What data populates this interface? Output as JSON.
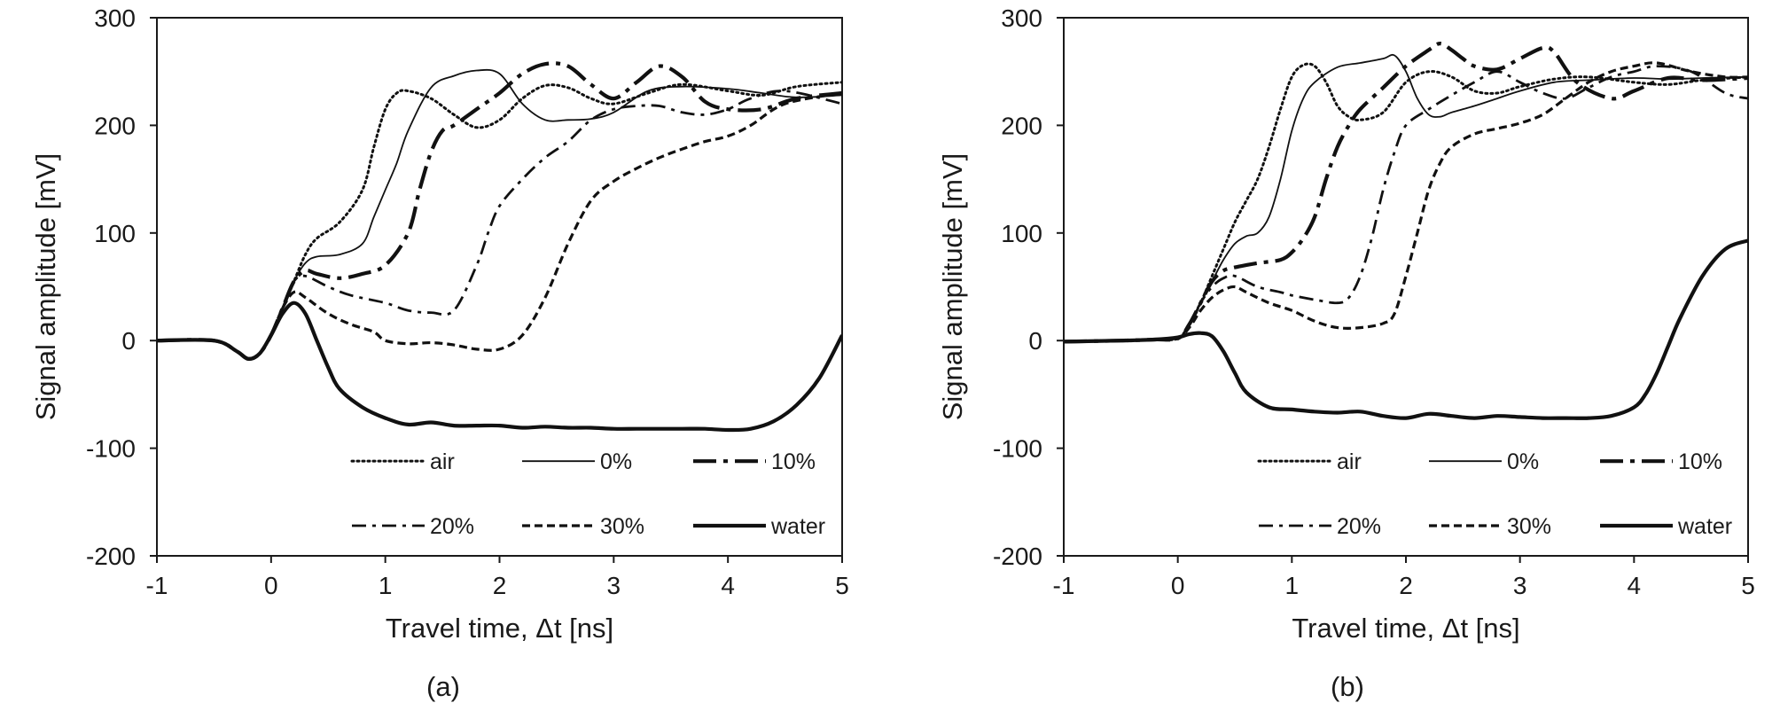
{
  "chart_data": [
    {
      "type": "line",
      "panel_label": "(a)",
      "xlabel": "Travel time, Δt [ns]",
      "ylabel": "Signal amplitude [mV]",
      "xlim": [
        -1,
        5
      ],
      "ylim": [
        -200,
        300
      ],
      "xticks": [
        -1,
        0,
        1,
        2,
        3,
        4,
        5
      ],
      "yticks": [
        -200,
        -100,
        0,
        100,
        200,
        300
      ],
      "grid": false,
      "legend": "lower-right",
      "series": [
        {
          "name": "air",
          "style": "dotted",
          "x": [
            -1,
            -0.5,
            -0.3,
            -0.2,
            -0.1,
            0,
            0.1,
            0.2,
            0.3,
            0.4,
            0.6,
            0.8,
            0.9,
            1.0,
            1.1,
            1.2,
            1.4,
            1.6,
            1.8,
            2.0,
            2.2,
            2.4,
            2.6,
            2.8,
            3.0,
            3.3,
            3.6,
            4.0,
            4.3,
            4.6,
            5.0
          ],
          "y": [
            0,
            0,
            -10,
            -17,
            -12,
            5,
            30,
            55,
            80,
            95,
            110,
            140,
            180,
            215,
            230,
            232,
            225,
            210,
            198,
            205,
            225,
            237,
            235,
            225,
            220,
            230,
            238,
            232,
            228,
            236,
            240
          ]
        },
        {
          "name": "0%",
          "style": "solid-thin",
          "x": [
            -1,
            -0.5,
            -0.3,
            -0.2,
            -0.1,
            0,
            0.1,
            0.2,
            0.3,
            0.4,
            0.6,
            0.8,
            0.9,
            1.0,
            1.1,
            1.2,
            1.4,
            1.6,
            1.8,
            2.0,
            2.2,
            2.4,
            2.6,
            2.8,
            3.0,
            3.3,
            3.6,
            4.0,
            4.3,
            4.6,
            5.0
          ],
          "y": [
            0,
            0,
            -10,
            -17,
            -12,
            5,
            30,
            55,
            72,
            78,
            80,
            90,
            115,
            140,
            165,
            195,
            235,
            246,
            251,
            248,
            220,
            205,
            205,
            206,
            212,
            232,
            236,
            234,
            230,
            226,
            228
          ]
        },
        {
          "name": "10%",
          "style": "long-dash-dot",
          "x": [
            -1,
            -0.5,
            -0.3,
            -0.2,
            -0.1,
            0,
            0.1,
            0.2,
            0.3,
            0.4,
            0.6,
            0.8,
            1.0,
            1.2,
            1.3,
            1.4,
            1.5,
            1.6,
            1.8,
            2.0,
            2.2,
            2.4,
            2.6,
            2.8,
            3.0,
            3.2,
            3.4,
            3.6,
            3.8,
            4.0,
            4.3,
            4.6,
            5.0
          ],
          "y": [
            0,
            0,
            -10,
            -17,
            -12,
            5,
            30,
            55,
            65,
            62,
            58,
            62,
            70,
            100,
            140,
            175,
            195,
            200,
            215,
            230,
            248,
            257,
            255,
            238,
            225,
            240,
            255,
            245,
            222,
            215,
            215,
            225,
            230
          ]
        },
        {
          "name": "20%",
          "style": "dash-dot",
          "x": [
            -1,
            -0.5,
            -0.3,
            -0.2,
            -0.1,
            0,
            0.1,
            0.2,
            0.3,
            0.5,
            0.7,
            1.0,
            1.2,
            1.4,
            1.6,
            1.8,
            1.9,
            2.0,
            2.2,
            2.4,
            2.6,
            2.8,
            3.0,
            3.2,
            3.4,
            3.6,
            3.8,
            4.0,
            4.2,
            4.5,
            5.0
          ],
          "y": [
            0,
            0,
            -10,
            -17,
            -12,
            5,
            30,
            55,
            60,
            50,
            42,
            35,
            28,
            26,
            28,
            70,
            100,
            125,
            150,
            170,
            185,
            205,
            215,
            218,
            218,
            212,
            210,
            215,
            225,
            232,
            220
          ]
        },
        {
          "name": "30%",
          "style": "dashed",
          "x": [
            -1,
            -0.5,
            -0.3,
            -0.2,
            -0.1,
            0,
            0.1,
            0.2,
            0.3,
            0.5,
            0.7,
            0.9,
            1.0,
            1.2,
            1.4,
            1.6,
            1.8,
            2.0,
            2.2,
            2.4,
            2.6,
            2.8,
            3.0,
            3.2,
            3.4,
            3.6,
            3.8,
            4.0,
            4.2,
            4.5,
            5.0
          ],
          "y": [
            0,
            0,
            -10,
            -17,
            -12,
            5,
            30,
            45,
            40,
            25,
            15,
            8,
            0,
            -3,
            -2,
            -4,
            -8,
            -8,
            5,
            40,
            90,
            130,
            148,
            160,
            170,
            178,
            185,
            190,
            200,
            220,
            230
          ]
        },
        {
          "name": "water",
          "style": "solid-thick",
          "x": [
            -1,
            -0.5,
            -0.3,
            -0.2,
            -0.1,
            0,
            0.1,
            0.2,
            0.3,
            0.4,
            0.5,
            0.6,
            0.8,
            1.0,
            1.2,
            1.4,
            1.6,
            1.8,
            2.0,
            2.2,
            2.4,
            2.6,
            2.8,
            3.0,
            3.2,
            3.4,
            3.6,
            3.8,
            4.0,
            4.2,
            4.4,
            4.6,
            4.8,
            5.0
          ],
          "y": [
            0,
            0,
            -10,
            -17,
            -12,
            5,
            25,
            35,
            25,
            0,
            -25,
            -45,
            -62,
            -72,
            -78,
            -76,
            -79,
            -79,
            -79,
            -81,
            -80,
            -81,
            -81,
            -82,
            -82,
            -82,
            -82,
            -82,
            -83,
            -82,
            -75,
            -60,
            -35,
            5
          ]
        }
      ]
    },
    {
      "type": "line",
      "panel_label": "(b)",
      "xlabel": "Travel time, Δt [ns]",
      "ylabel": "Signal amplitude [mV]",
      "xlim": [
        -1,
        5
      ],
      "ylim": [
        -200,
        300
      ],
      "xticks": [
        -1,
        0,
        1,
        2,
        3,
        4,
        5
      ],
      "yticks": [
        -200,
        -100,
        0,
        100,
        200,
        300
      ],
      "grid": false,
      "legend": "lower-right",
      "series": [
        {
          "name": "air",
          "style": "dotted",
          "x": [
            -1,
            -0.5,
            -0.2,
            0,
            0.1,
            0.2,
            0.3,
            0.4,
            0.5,
            0.6,
            0.7,
            0.8,
            0.9,
            1.0,
            1.1,
            1.2,
            1.3,
            1.4,
            1.5,
            1.6,
            1.8,
            2.0,
            2.2,
            2.4,
            2.6,
            2.8,
            3.0,
            3.3,
            3.6,
            4.0,
            4.3,
            4.6,
            5.0
          ],
          "y": [
            -1,
            0,
            1,
            2,
            15,
            35,
            60,
            85,
            110,
            130,
            150,
            180,
            215,
            245,
            256,
            255,
            240,
            218,
            208,
            205,
            212,
            240,
            250,
            245,
            232,
            230,
            236,
            243,
            245,
            240,
            238,
            242,
            245
          ]
        },
        {
          "name": "0%",
          "style": "solid-thin",
          "x": [
            -1,
            -0.5,
            -0.2,
            0,
            0.1,
            0.2,
            0.3,
            0.4,
            0.5,
            0.6,
            0.7,
            0.8,
            0.9,
            1.0,
            1.1,
            1.2,
            1.4,
            1.6,
            1.8,
            1.9,
            2.0,
            2.1,
            2.2,
            2.3,
            2.4,
            2.6,
            2.8,
            3.0,
            3.3,
            3.6,
            4.0,
            4.3,
            4.6,
            5.0
          ],
          "y": [
            -1,
            0,
            1,
            2,
            15,
            35,
            55,
            75,
            90,
            97,
            100,
            115,
            150,
            195,
            225,
            240,
            254,
            258,
            262,
            265,
            250,
            225,
            210,
            208,
            212,
            218,
            225,
            232,
            240,
            242,
            244,
            243,
            244,
            245
          ]
        },
        {
          "name": "10%",
          "style": "long-dash-dot",
          "x": [
            -1,
            -0.5,
            -0.2,
            0,
            0.1,
            0.2,
            0.3,
            0.4,
            0.5,
            0.7,
            0.9,
            1.0,
            1.1,
            1.2,
            1.3,
            1.4,
            1.5,
            1.6,
            1.8,
            2.0,
            2.2,
            2.3,
            2.4,
            2.5,
            2.6,
            2.8,
            3.0,
            3.2,
            3.3,
            3.5,
            3.8,
            4.0,
            4.3,
            4.6,
            5.0
          ],
          "y": [
            -1,
            0,
            1,
            2,
            15,
            35,
            55,
            65,
            68,
            72,
            75,
            82,
            95,
            115,
            150,
            180,
            200,
            215,
            235,
            255,
            270,
            276,
            270,
            262,
            255,
            252,
            262,
            272,
            268,
            240,
            225,
            232,
            244,
            242,
            244
          ]
        },
        {
          "name": "20%",
          "style": "dash-dot",
          "x": [
            -1,
            -0.5,
            -0.2,
            0,
            0.1,
            0.2,
            0.3,
            0.4,
            0.5,
            0.7,
            0.9,
            1.0,
            1.2,
            1.4,
            1.5,
            1.6,
            1.7,
            1.8,
            1.9,
            2.0,
            2.2,
            2.4,
            2.6,
            2.8,
            3.0,
            3.2,
            3.4,
            3.6,
            3.8,
            4.0,
            4.2,
            4.5,
            4.8,
            5.0
          ],
          "y": [
            -1,
            0,
            1,
            2,
            15,
            35,
            50,
            58,
            60,
            50,
            45,
            42,
            38,
            35,
            40,
            60,
            95,
            140,
            175,
            200,
            215,
            228,
            240,
            250,
            240,
            230,
            225,
            235,
            245,
            250,
            255,
            250,
            230,
            225
          ]
        },
        {
          "name": "30%",
          "style": "dashed",
          "x": [
            -1,
            -0.5,
            -0.2,
            0,
            0.1,
            0.2,
            0.3,
            0.4,
            0.5,
            0.6,
            0.8,
            1.0,
            1.2,
            1.4,
            1.6,
            1.8,
            1.9,
            2.0,
            2.1,
            2.2,
            2.3,
            2.4,
            2.6,
            2.8,
            3.0,
            3.2,
            3.4,
            3.6,
            3.8,
            4.0,
            4.2,
            4.5,
            4.8,
            5.0
          ],
          "y": [
            -1,
            0,
            1,
            2,
            12,
            28,
            40,
            47,
            50,
            45,
            35,
            28,
            18,
            12,
            12,
            16,
            25,
            60,
            100,
            140,
            165,
            180,
            192,
            197,
            202,
            210,
            225,
            240,
            250,
            255,
            258,
            250,
            245,
            245
          ]
        },
        {
          "name": "water",
          "style": "solid-thick",
          "x": [
            -1,
            -0.5,
            -0.2,
            0,
            0.1,
            0.2,
            0.3,
            0.4,
            0.5,
            0.6,
            0.8,
            1.0,
            1.2,
            1.4,
            1.6,
            1.8,
            2.0,
            2.2,
            2.4,
            2.6,
            2.8,
            3.0,
            3.2,
            3.4,
            3.6,
            3.8,
            4.0,
            4.1,
            4.2,
            4.3,
            4.4,
            4.6,
            4.8,
            5.0
          ],
          "y": [
            -1,
            0,
            1,
            3,
            6,
            7,
            4,
            -10,
            -30,
            -48,
            -62,
            -64,
            -66,
            -67,
            -66,
            -70,
            -72,
            -68,
            -70,
            -72,
            -70,
            -71,
            -72,
            -72,
            -72,
            -70,
            -62,
            -50,
            -30,
            -5,
            20,
            60,
            85,
            93
          ]
        }
      ]
    }
  ]
}
